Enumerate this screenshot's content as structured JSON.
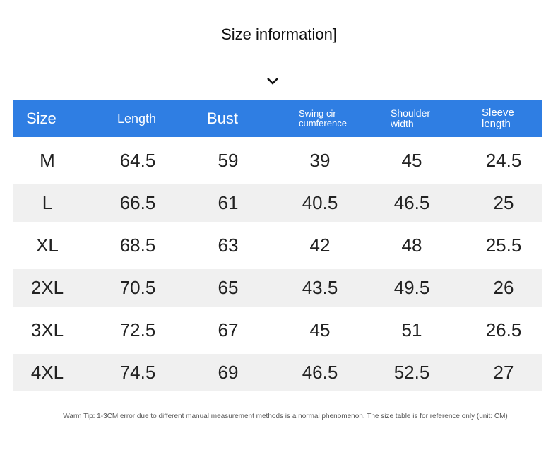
{
  "header": {
    "title": "Size information]"
  },
  "table": {
    "columns": [
      [
        "Size"
      ],
      [
        "Length"
      ],
      [
        "Bust"
      ],
      [
        "Swing cir-",
        "cumference"
      ],
      [
        "Shoulder",
        "width"
      ],
      [
        "Sleeve",
        "length"
      ]
    ],
    "rows": [
      [
        "M",
        64.5,
        59,
        39,
        45,
        24.5
      ],
      [
        "L",
        66.5,
        61,
        40.5,
        46.5,
        25
      ],
      [
        "XL",
        68.5,
        63,
        42,
        48,
        25.5
      ],
      [
        "2XL",
        70.5,
        65,
        43.5,
        49.5,
        26
      ],
      [
        "3XL",
        72.5,
        67,
        45,
        51,
        26.5
      ],
      [
        "4XL",
        74.5,
        69,
        46.5,
        52.5,
        27
      ]
    ]
  },
  "footer": {
    "tip": "Warm Tip: 1-3CM error due to different manual measurement methods is a normal phenomenon. The size table is for reference only (unit: CM)"
  }
}
